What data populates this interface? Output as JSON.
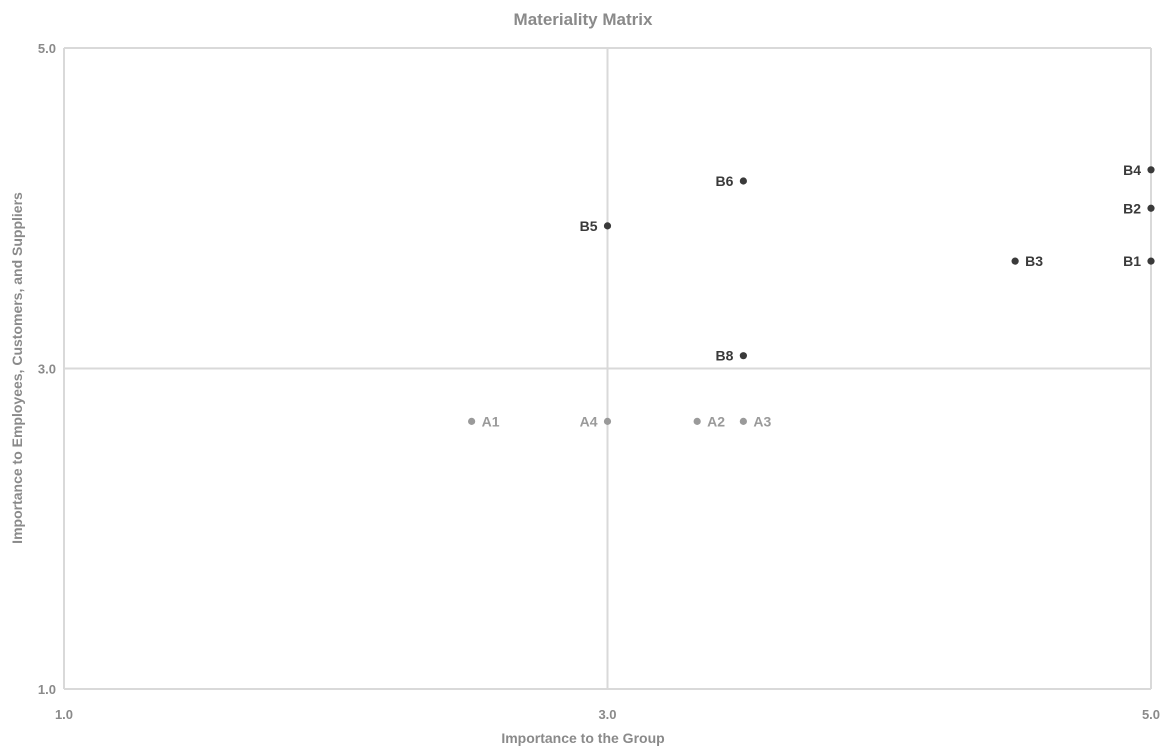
{
  "chart_data": {
    "type": "scatter",
    "title": "Materiality Matrix",
    "xlabel": "Importance to the Group",
    "ylabel": "Importance to Employees, Customers, and Suppliers",
    "xlim": [
      1.0,
      5.0
    ],
    "ylim": [
      1.0,
      5.0
    ],
    "x_ticks": [
      "1.0",
      "3.0",
      "5.0"
    ],
    "y_ticks": [
      "1.0",
      "3.0",
      "5.0"
    ],
    "grid": true,
    "colors": {
      "A": "#9a9a9a",
      "B": "#3a3a3a",
      "axis": "#d9d9d9",
      "label": "#8a8a8a"
    },
    "points": [
      {
        "label": "A1",
        "x": 2.5,
        "y": 2.67,
        "group": "A",
        "label_side": "right"
      },
      {
        "label": "A4",
        "x": 3.0,
        "y": 2.67,
        "group": "A",
        "label_side": "left"
      },
      {
        "label": "A2",
        "x": 3.33,
        "y": 2.67,
        "group": "A",
        "label_side": "right"
      },
      {
        "label": "A3",
        "x": 3.5,
        "y": 2.67,
        "group": "A",
        "label_side": "right"
      },
      {
        "label": "B1",
        "x": 5.0,
        "y": 3.67,
        "group": "B",
        "label_side": "left"
      },
      {
        "label": "B2",
        "x": 5.0,
        "y": 4.0,
        "group": "B",
        "label_side": "left"
      },
      {
        "label": "B3",
        "x": 4.5,
        "y": 3.67,
        "group": "B",
        "label_side": "right"
      },
      {
        "label": "B4",
        "x": 5.0,
        "y": 4.24,
        "group": "B",
        "label_side": "left"
      },
      {
        "label": "B5",
        "x": 3.0,
        "y": 3.89,
        "group": "B",
        "label_side": "left"
      },
      {
        "label": "B6",
        "x": 3.5,
        "y": 4.17,
        "group": "B",
        "label_side": "left"
      },
      {
        "label": "B8",
        "x": 3.5,
        "y": 3.08,
        "group": "B",
        "label_side": "left"
      }
    ]
  }
}
